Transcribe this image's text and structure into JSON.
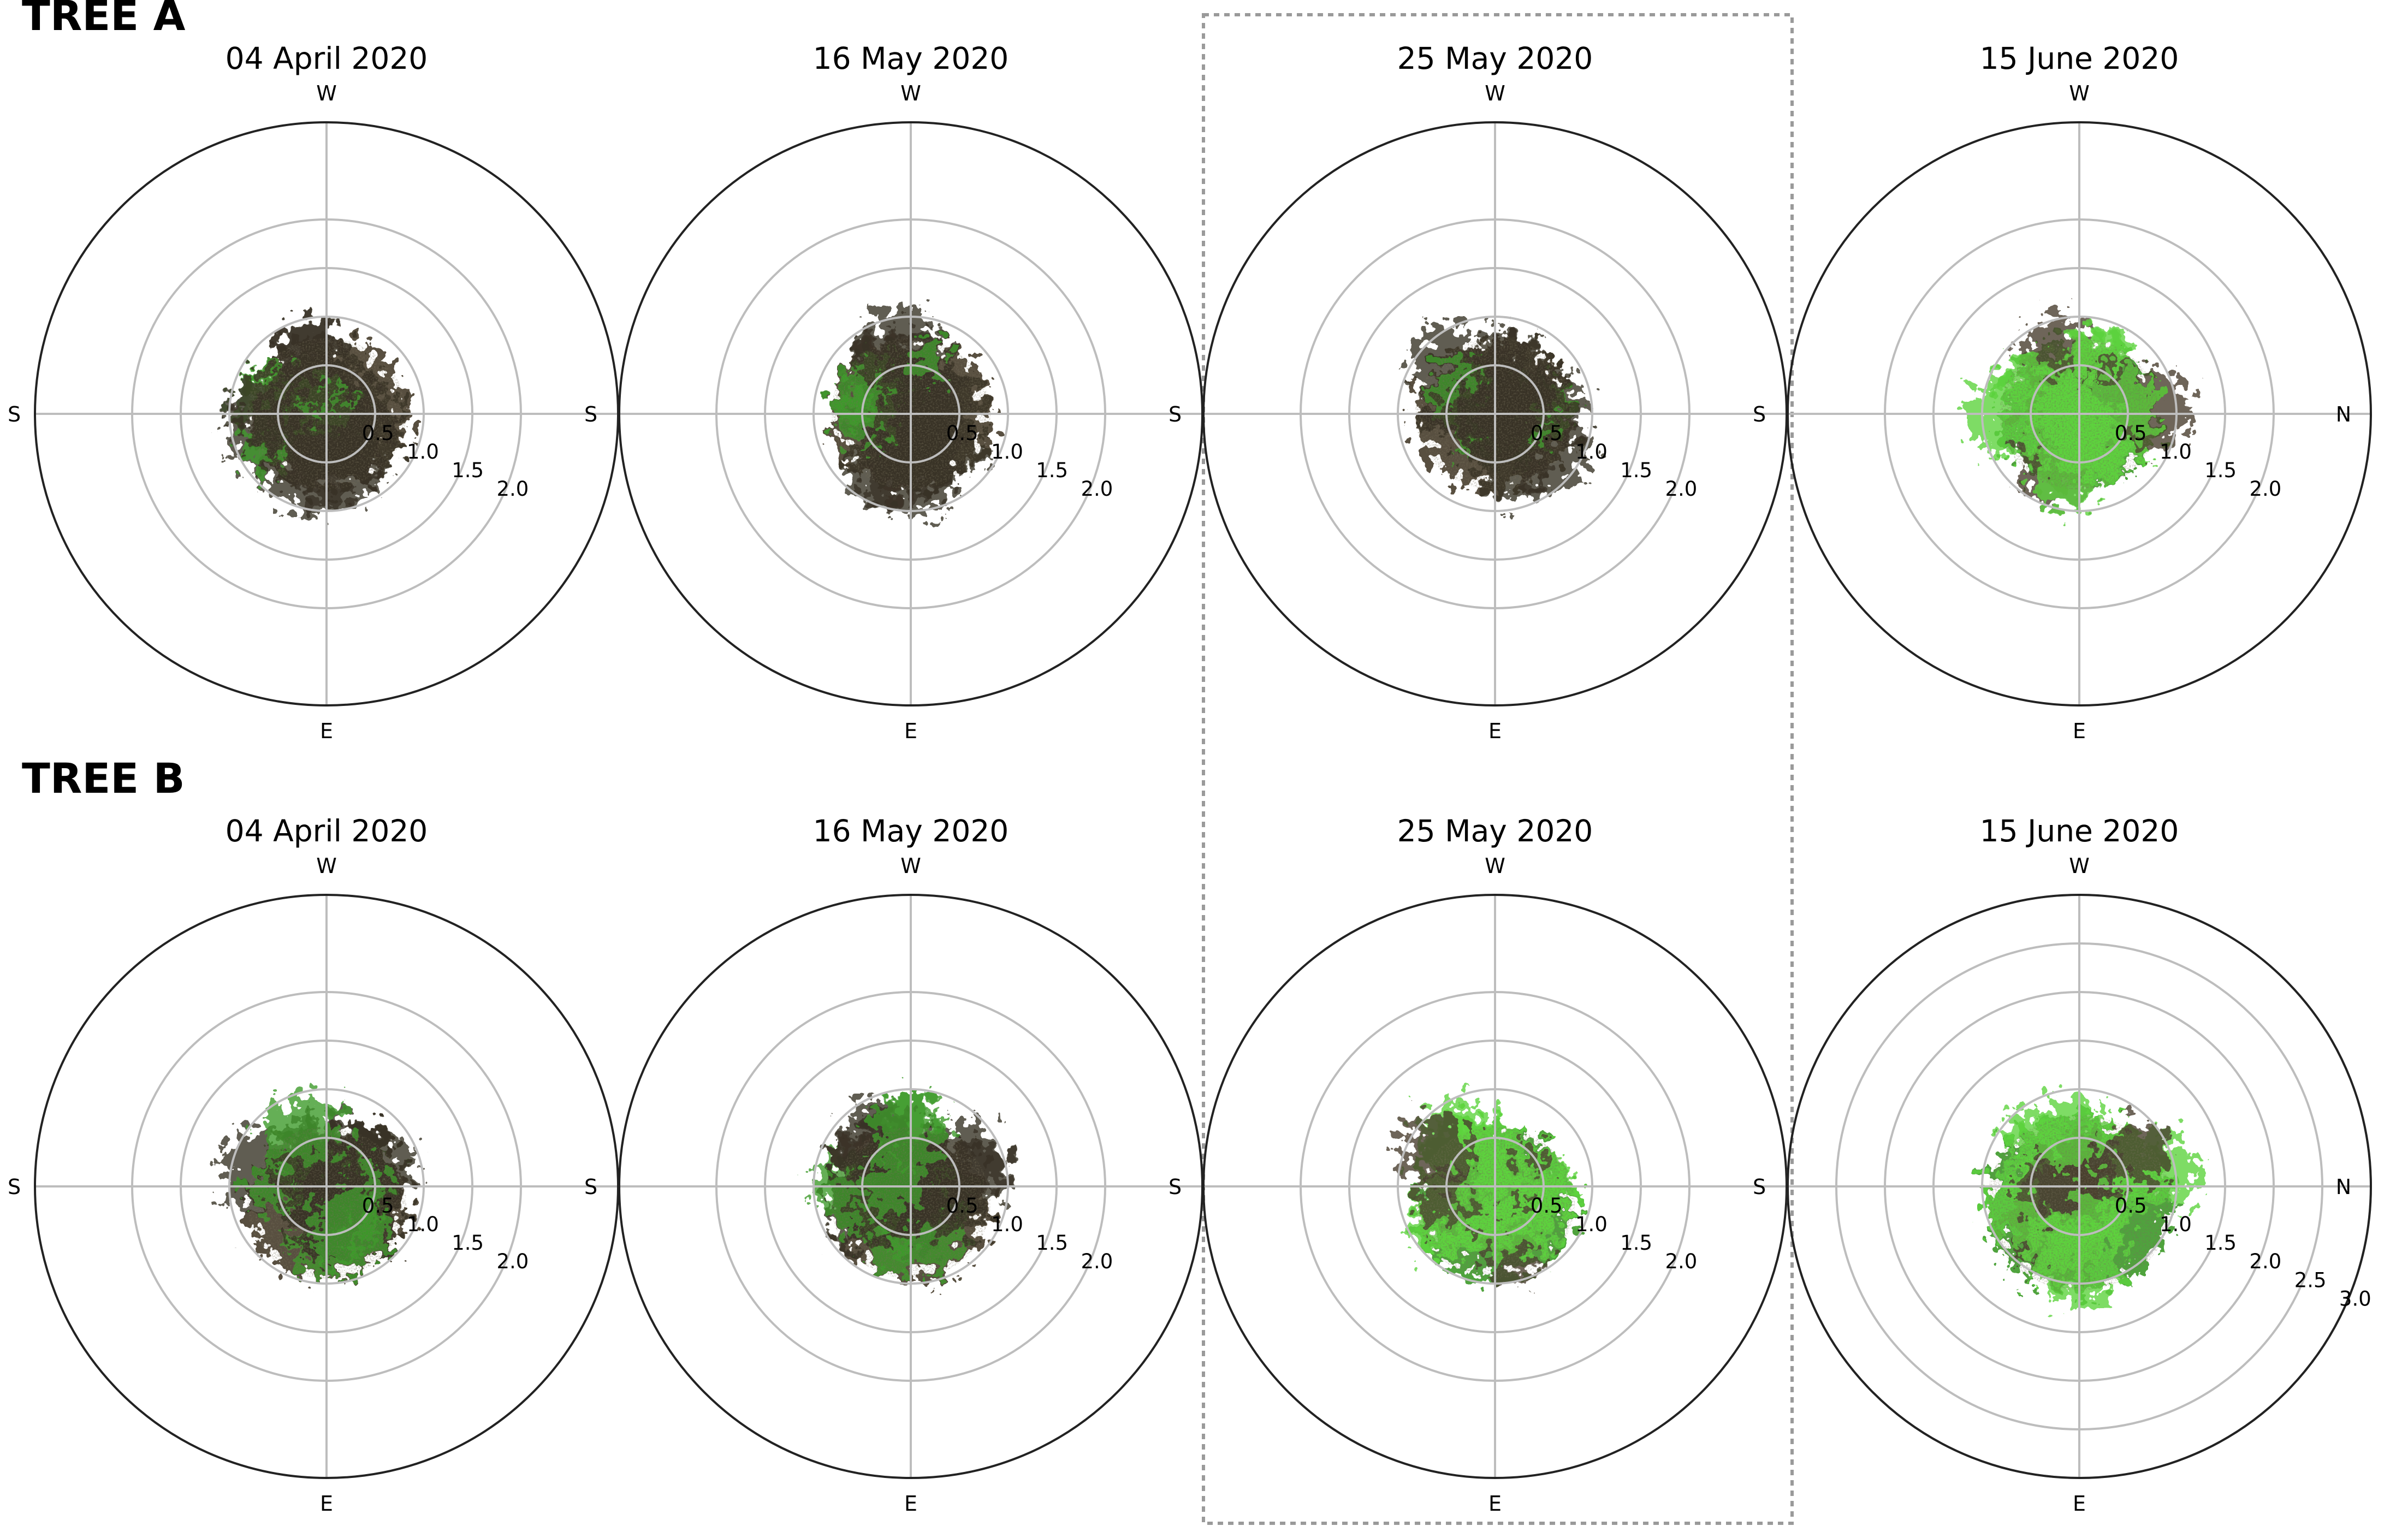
{
  "rows": [
    {
      "label": "TREE A",
      "panels": [
        {
          "title": "04 April 2020",
          "top": "W",
          "bottom": "E",
          "left": "S",
          "right": "S"
        },
        {
          "title": "16 May 2020",
          "top": "W",
          "bottom": "E",
          "left": "",
          "right": "S"
        },
        {
          "title": "25 May 2020",
          "top": "W",
          "bottom": "E",
          "left": "",
          "right": "S"
        },
        {
          "title": "15 June 2020",
          "top": "W",
          "bottom": "E",
          "left": "",
          "right": "N"
        }
      ]
    },
    {
      "label": "TREE B",
      "panels": [
        {
          "title": "04 April 2020",
          "top": "W",
          "bottom": "E",
          "left": "S",
          "right": "S"
        },
        {
          "title": "16 May 2020",
          "top": "W",
          "bottom": "E",
          "left": "",
          "right": "S"
        },
        {
          "title": "25 May 2020",
          "top": "W",
          "bottom": "E",
          "left": "",
          "right": "S"
        },
        {
          "title": "15 June 2020",
          "top": "W",
          "bottom": "E",
          "left": "",
          "right": "N"
        }
      ]
    }
  ],
  "chart_data": [
    {
      "type": "polar",
      "title": "04 April 2020",
      "rmax": 3.0,
      "rticks": [
        0.5,
        1.0,
        1.5,
        2.0
      ],
      "grid": true,
      "highlighted": false
    },
    {
      "type": "polar",
      "title": "16 May 2020",
      "rmax": 3.0,
      "rticks": [
        0.5,
        1.0,
        1.5,
        2.0
      ],
      "grid": true,
      "highlighted": false
    },
    {
      "type": "polar",
      "title": "25 May 2020",
      "rmax": 3.0,
      "rticks": [
        0.5,
        1.0,
        1.5,
        2.0
      ],
      "grid": true,
      "highlighted": true
    },
    {
      "type": "polar",
      "title": "15 June 2020",
      "rmax": 3.0,
      "rticks": [
        0.5,
        1.0,
        1.5,
        2.0
      ],
      "grid": true,
      "highlighted": false
    },
    {
      "type": "polar",
      "title": "04 April 2020",
      "rmax": 3.0,
      "rticks": [
        0.5,
        1.0,
        1.5,
        2.0
      ],
      "grid": true,
      "highlighted": false
    },
    {
      "type": "polar",
      "title": "16 May 2020",
      "rmax": 3.0,
      "rticks": [
        0.5,
        1.0,
        1.5,
        2.0
      ],
      "grid": true,
      "highlighted": false
    },
    {
      "type": "polar",
      "title": "25 May 2020",
      "rmax": 3.0,
      "rticks": [
        0.5,
        1.0,
        1.5,
        2.0
      ],
      "grid": true,
      "highlighted": true
    },
    {
      "type": "polar",
      "title": "15 June 2020",
      "rmax": 3.0,
      "rticks": [
        0.5,
        1.0,
        1.5,
        2.0,
        2.5,
        3.0
      ],
      "grid": true,
      "highlighted": false
    }
  ],
  "colors": {
    "frame": "#222222",
    "grid": "#bdbdbd",
    "highlight": "#9a9a9a",
    "foliage_dark": "#4a4030",
    "foliage_green": "#3f9b2a",
    "foliage_light": "#5ed33f"
  }
}
